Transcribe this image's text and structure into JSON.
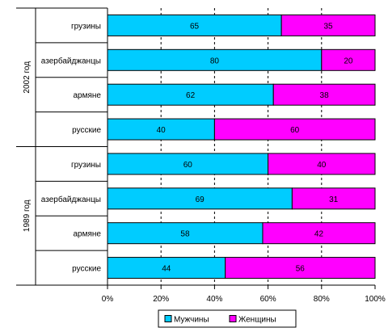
{
  "chart_data": {
    "type": "bar",
    "orientation": "horizontal",
    "stacked": "percent",
    "groups": [
      {
        "label": "2002 год",
        "categories": [
          "грузины",
          "азербайджанцы",
          "армяне",
          "русские"
        ]
      },
      {
        "label": "1989 год",
        "categories": [
          "грузины",
          "азербайджанцы",
          "армяне",
          "русские"
        ]
      }
    ],
    "series": [
      {
        "name": "Мужчины",
        "color": "#00CCFF",
        "values": [
          65,
          80,
          62,
          40,
          60,
          69,
          58,
          44
        ]
      },
      {
        "name": "Женщины",
        "color": "#FF00FF",
        "values": [
          35,
          20,
          38,
          60,
          40,
          31,
          42,
          56
        ]
      }
    ],
    "xlim": [
      0,
      100
    ],
    "xticks": [
      "0%",
      "20%",
      "40%",
      "60%",
      "80%",
      "100%"
    ],
    "grid": "vertical dashed",
    "legend_position": "bottom"
  }
}
